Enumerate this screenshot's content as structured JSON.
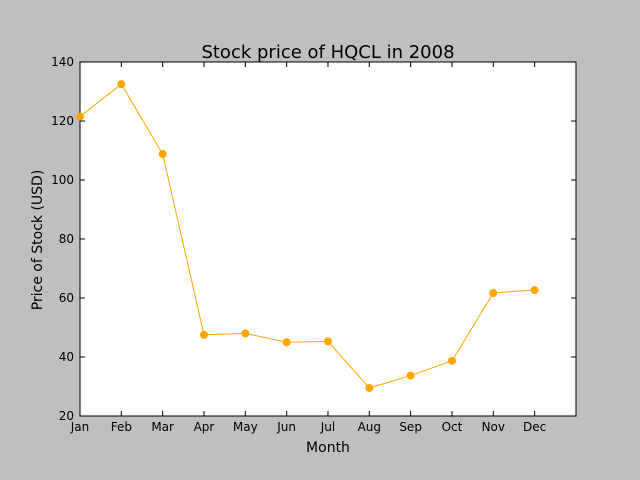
{
  "chart_data": {
    "type": "line",
    "title": "Stock price of HQCL in 2008",
    "xlabel": "Month",
    "ylabel": "Price of Stock (USD)",
    "categories": [
      "Jan",
      "Feb",
      "Mar",
      "Apr",
      "May",
      "Jun",
      "Jul",
      "Aug",
      "Sep",
      "Oct",
      "Nov",
      "Dec"
    ],
    "values": [
      121.5,
      132.5,
      108.8,
      47.5,
      48.0,
      45.0,
      45.3,
      29.5,
      33.7,
      38.7,
      61.7,
      62.7
    ],
    "ylim": [
      20,
      140
    ],
    "yticks": [
      20,
      40,
      60,
      80,
      100,
      120,
      140
    ],
    "line_color": "#ffa500",
    "background_color": "#bfbfbf",
    "plot_background_color": "#ffffff",
    "grid": false,
    "marker": "circle"
  }
}
